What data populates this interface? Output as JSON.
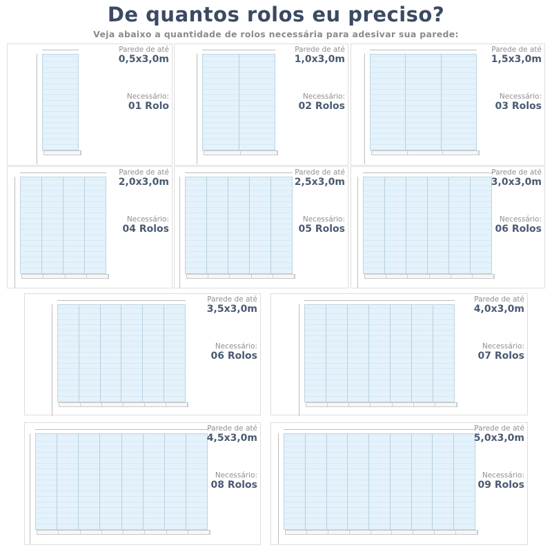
{
  "header": {
    "title": "De quantos rolos eu preciso?",
    "subtitle": "Veja abaixo a quantidade de rolos necessária para adesivar sua parede:"
  },
  "labels": {
    "wall": "Parede de até",
    "needed": "Necessário:"
  },
  "colors": {
    "title": "#3b4a62",
    "panel": "#e4f2fb",
    "panel_border": "#b4cfe0"
  },
  "cards": [
    {
      "wall_size": "0,5x3,0m",
      "rolls": "01 Rolo",
      "panels": 1
    },
    {
      "wall_size": "1,0x3,0m",
      "rolls": "02 Rolos",
      "panels": 2
    },
    {
      "wall_size": "1,5x3,0m",
      "rolls": "03 Rolos",
      "panels": 3
    },
    {
      "wall_size": "2,0x3,0m",
      "rolls": "04 Rolos",
      "panels": 4
    },
    {
      "wall_size": "2,5x3,0m",
      "rolls": "05 Rolos",
      "panels": 5
    },
    {
      "wall_size": "3,0x3,0m",
      "rolls": "06 Rolos",
      "panels": 6
    },
    {
      "wall_size": "3,5x3,0m",
      "rolls": "06 Rolos",
      "panels": 6
    },
    {
      "wall_size": "4,0x3,0m",
      "rolls": "07 Rolos",
      "panels": 7
    },
    {
      "wall_size": "4,5x3,0m",
      "rolls": "08 Rolos",
      "panels": 8
    },
    {
      "wall_size": "5,0x3,0m",
      "rolls": "09 Rolos",
      "panels": 9
    }
  ]
}
